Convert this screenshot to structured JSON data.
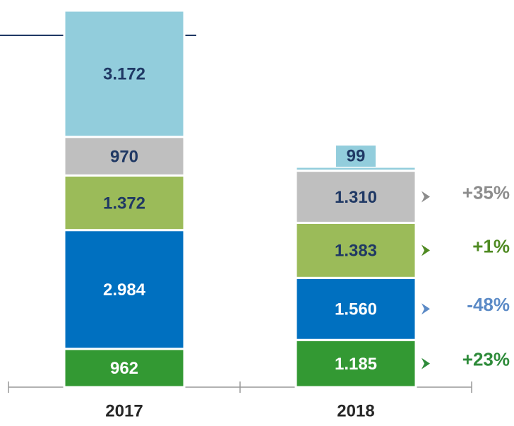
{
  "chart_data": {
    "type": "stacked_bar",
    "categories": [
      "2017",
      "2018"
    ],
    "series": [
      {
        "color": "#339933",
        "label_color": "#ffffff",
        "values": [
          962,
          1185
        ],
        "value_labels": [
          "962",
          "1.185"
        ],
        "change": "+23%",
        "change_color": "#2e8b3a"
      },
      {
        "color": "#0070c0",
        "label_color": "#ffffff",
        "values": [
          2984,
          1560
        ],
        "value_labels": [
          "2.984",
          "1.560"
        ],
        "change": "-48%",
        "change_color": "#5b8ac6"
      },
      {
        "color": "#9bbb59",
        "label_color": "#1f3864",
        "values": [
          1372,
          1383
        ],
        "value_labels": [
          "1.372",
          "1.383"
        ],
        "change": "+1%",
        "change_color": "#4f8a22"
      },
      {
        "color": "#bfbfbf",
        "label_color": "#1f3864",
        "values": [
          970,
          1310
        ],
        "value_labels": [
          "970",
          "1.310"
        ],
        "change": "+35%",
        "change_color": "#8c8c8c"
      },
      {
        "color": "#92cddc",
        "label_color": "#1f3864",
        "values": [
          3172,
          99
        ],
        "value_labels": [
          "3.172",
          "99"
        ]
      }
    ]
  }
}
